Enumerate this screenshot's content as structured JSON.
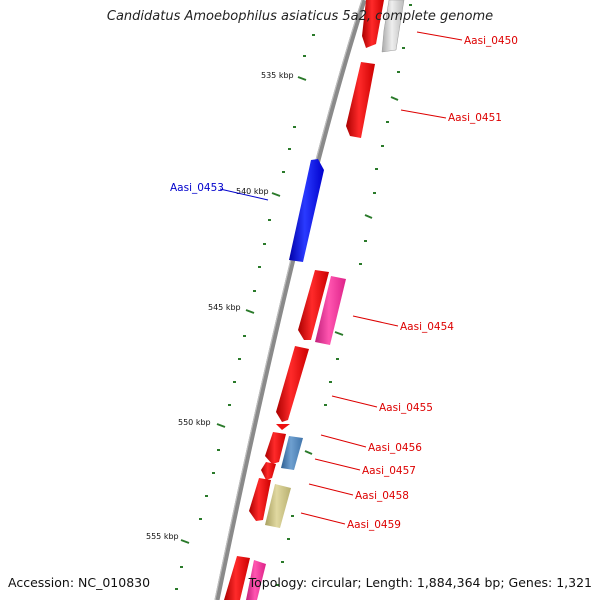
{
  "title": "Candidatus Amoebophilus asiaticus 5a2, complete genome",
  "accession_text": "Accession: NC_010830",
  "topology_text": "Topology: circular; Length: 1,884,364 bp; Genes: 1,321",
  "scale_labels": [
    "535 kbp",
    "540 kbp",
    "545 kbp",
    "550 kbp",
    "555 kbp"
  ],
  "genes": [
    {
      "label": "Aasi_0450",
      "color": "#cc0000"
    },
    {
      "label": "Aasi_0451",
      "color": "#cc0000"
    },
    {
      "label": "Aasi_0453",
      "color": "#0000cc"
    },
    {
      "label": "Aasi_0454",
      "color": "#cc0000"
    },
    {
      "label": "Aasi_0455",
      "color": "#cc0000"
    },
    {
      "label": "Aasi_0456",
      "color": "#cc0000"
    },
    {
      "label": "Aasi_0457",
      "color": "#cc0000"
    },
    {
      "label": "Aasi_0458",
      "color": "#cc0000"
    },
    {
      "label": "Aasi_0459",
      "color": "#cc0000"
    }
  ],
  "colors": {
    "backbone": "#8a8a8a",
    "cds_forward": "#ee1111",
    "cds_reverse": "#1122ee",
    "rna_pink": "#ee3399",
    "grey_feature": "#cfcfcf",
    "blue_steel": "#4a7fb5",
    "khaki": "#c8c080",
    "tick_green": "#2a7a2a"
  }
}
